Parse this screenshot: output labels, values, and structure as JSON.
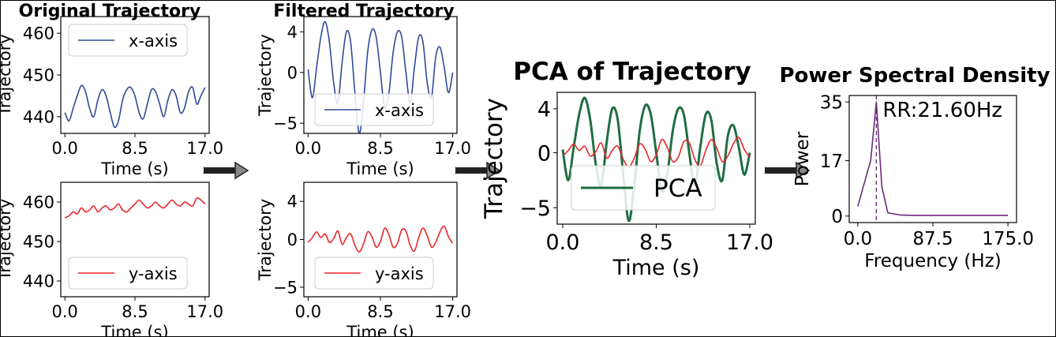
{
  "figure": {
    "arrow_color": "#222222",
    "panel_colors": {
      "x": "#2f4a96",
      "y": "#e8262a",
      "pca": "#1f6e43",
      "psd": "#6b2a7a"
    }
  },
  "chart_data": [
    {
      "id": "orig-x",
      "type": "line",
      "title": "Original Trajectory",
      "xlabel": "Time (s)",
      "ylabel": "Trajectory",
      "xlim": [
        -0.5,
        17.5
      ],
      "ylim": [
        436,
        464
      ],
      "xticks": [
        0.0,
        8.5,
        17.0
      ],
      "xtick_labels": [
        "0.0",
        "8.5",
        "17.0"
      ],
      "yticks": [
        440,
        450,
        460
      ],
      "ytick_labels": [
        "440",
        "450",
        "460"
      ],
      "legend": "top-left",
      "series": [
        {
          "name": "x-axis",
          "color": "#2f4a96",
          "x": [
            0,
            0.5,
            1,
            1.5,
            2,
            2.5,
            3,
            3.5,
            4,
            4.5,
            5,
            5.5,
            6,
            6.5,
            7,
            7.5,
            8,
            8.5,
            9,
            9.5,
            10,
            10.5,
            11,
            11.5,
            12,
            12.5,
            13,
            13.5,
            14,
            14.5,
            15,
            15.5,
            16,
            16.5,
            17
          ],
          "y": [
            441,
            439,
            442,
            445,
            447.5,
            446,
            442,
            440,
            444,
            446.5,
            445,
            441,
            437.5,
            439,
            444,
            446.5,
            447,
            445,
            441,
            439.5,
            443,
            446.5,
            446,
            443,
            440,
            444,
            446.5,
            445,
            441,
            442,
            446,
            447,
            443,
            445,
            447
          ]
        }
      ]
    },
    {
      "id": "orig-y",
      "type": "line",
      "title": "",
      "xlabel": "Time (s)",
      "ylabel": "Trajectory",
      "xlim": [
        -0.5,
        17.5
      ],
      "ylim": [
        436,
        465
      ],
      "xticks": [
        0.0,
        8.5,
        17.0
      ],
      "xtick_labels": [
        "0.0",
        "8.5",
        "17.0"
      ],
      "yticks": [
        440,
        450,
        460
      ],
      "ytick_labels": [
        "440",
        "450",
        "460"
      ],
      "legend": "bottom-left",
      "series": [
        {
          "name": "y-axis",
          "color": "#e8262a",
          "x": [
            0,
            0.5,
            1,
            1.5,
            2,
            2.5,
            3,
            3.5,
            4,
            4.5,
            5,
            5.5,
            6,
            6.5,
            7,
            7.5,
            8,
            8.5,
            9,
            9.5,
            10,
            10.5,
            11,
            11.5,
            12,
            12.5,
            13,
            13.5,
            14,
            14.5,
            15,
            15.5,
            16,
            16.5,
            17
          ],
          "y": [
            456,
            456.5,
            457.5,
            457,
            458.5,
            457.5,
            458,
            459,
            457.5,
            458.5,
            459,
            458,
            458.5,
            459.5,
            458,
            457.5,
            458.5,
            459.5,
            460.5,
            459.5,
            458.5,
            459,
            460,
            459,
            458.5,
            459.5,
            460.5,
            459.5,
            459,
            460,
            459.5,
            459,
            461,
            460.5,
            459.5
          ]
        }
      ]
    },
    {
      "id": "filt-x",
      "type": "line",
      "title": "Filtered Trajectory",
      "xlabel": "Time (s)",
      "ylabel": "Trajectory",
      "xlim": [
        -0.5,
        17.5
      ],
      "ylim": [
        -6,
        5.5
      ],
      "xticks": [
        0.0,
        8.5,
        17.0
      ],
      "xtick_labels": [
        "0.0",
        "8.5",
        "17.0"
      ],
      "yticks": [
        -5,
        0,
        4
      ],
      "ytick_labels": [
        "−5",
        "0",
        "4"
      ],
      "legend": "bottom-center",
      "series": [
        {
          "name": "x-axis",
          "color": "#2f4a96",
          "x": [
            0,
            0.5,
            1,
            1.5,
            2,
            2.5,
            3,
            3.5,
            4,
            4.5,
            5,
            5.5,
            6,
            6.5,
            7,
            7.5,
            8,
            8.5,
            9,
            9.5,
            10,
            10.5,
            11,
            11.5,
            12,
            12.5,
            13,
            13.5,
            14,
            14.5,
            15,
            15.5,
            16,
            16.5,
            17
          ],
          "y": [
            0.3,
            -2.5,
            0.5,
            3.5,
            5,
            3,
            -1,
            -3,
            1,
            4,
            3,
            -2,
            -6,
            -3,
            2,
            4.2,
            3.5,
            0,
            -3.5,
            -2,
            2,
            4,
            3.5,
            0,
            -3,
            0.5,
            3.5,
            3,
            -1,
            -2.5,
            1.5,
            2.5,
            0.5,
            -2,
            0
          ]
        }
      ]
    },
    {
      "id": "filt-y",
      "type": "line",
      "title": "",
      "xlabel": "Time (s)",
      "ylabel": "Trajectory",
      "xlim": [
        -0.5,
        17.5
      ],
      "ylim": [
        -6,
        6
      ],
      "xticks": [
        0.0,
        8.5,
        17.0
      ],
      "xtick_labels": [
        "0.0",
        "8.5",
        "17.0"
      ],
      "yticks": [
        -5,
        0,
        4
      ],
      "ytick_labels": [
        "−5",
        "0",
        "4"
      ],
      "legend": "bottom-center",
      "series": [
        {
          "name": "y-axis",
          "color": "#e8262a",
          "x": [
            0,
            0.5,
            1,
            1.5,
            2,
            2.5,
            3,
            3.5,
            4,
            4.5,
            5,
            5.5,
            6,
            6.5,
            7,
            7.5,
            8,
            8.5,
            9,
            9.5,
            10,
            10.5,
            11,
            11.5,
            12,
            12.5,
            13,
            13.5,
            14,
            14.5,
            15,
            15.5,
            16,
            16.5,
            17
          ],
          "y": [
            -0.3,
            0.2,
            0.8,
            0.2,
            0.6,
            -0.3,
            0.1,
            0.9,
            -0.5,
            0.2,
            0.6,
            -0.6,
            -1.3,
            -0.5,
            0.8,
            0.3,
            -0.8,
            -0.2,
            1.2,
            0.5,
            -0.8,
            -0.4,
            1.0,
            0.9,
            -0.6,
            -1.2,
            0.2,
            1.2,
            0.4,
            -0.8,
            -0.3,
            0.8,
            1.4,
            0.3,
            -0.4
          ]
        }
      ]
    },
    {
      "id": "pca",
      "type": "line",
      "title": "PCA of Trajectory",
      "xlabel": "Time (s)",
      "ylabel": "Trajectory",
      "xlim": [
        -0.5,
        17.5
      ],
      "ylim": [
        -6.5,
        5.5
      ],
      "xticks": [
        0.0,
        8.5,
        17.0
      ],
      "xtick_labels": [
        "0.0",
        "8.5",
        "17.0"
      ],
      "yticks": [
        -5,
        0,
        4
      ],
      "ytick_labels": [
        "−5",
        "0",
        "4"
      ],
      "legend": "bottom-center",
      "series": [
        {
          "name": "PCA",
          "color": "#1f6e43",
          "x": [
            0,
            0.5,
            1,
            1.5,
            2,
            2.5,
            3,
            3.5,
            4,
            4.5,
            5,
            5.5,
            6,
            6.5,
            7,
            7.5,
            8,
            8.5,
            9,
            9.5,
            10,
            10.5,
            11,
            11.5,
            12,
            12.5,
            13,
            13.5,
            14,
            14.5,
            15,
            15.5,
            16,
            16.5,
            17
          ],
          "y": [
            0.3,
            -2.5,
            0.5,
            3.5,
            5,
            3,
            -1,
            -3,
            1,
            4,
            3,
            -2,
            -6.2,
            -3,
            2,
            4.3,
            3.5,
            0,
            -3.5,
            -2,
            2,
            4,
            3.5,
            0,
            -3,
            0.5,
            3.5,
            3,
            -1,
            -2.5,
            1.5,
            2.5,
            0.5,
            -2,
            0
          ]
        },
        {
          "color": "#e8262a",
          "x": [
            0,
            0.5,
            1,
            1.5,
            2,
            2.5,
            3,
            3.5,
            4,
            4.5,
            5,
            5.5,
            6,
            6.5,
            7,
            7.5,
            8,
            8.5,
            9,
            9.5,
            10,
            10.5,
            11,
            11.5,
            12,
            12.5,
            13,
            13.5,
            14,
            14.5,
            15,
            15.5,
            16,
            16.5,
            17
          ],
          "y": [
            -0.3,
            0.2,
            0.8,
            0.2,
            0.6,
            -0.3,
            0.1,
            0.9,
            -0.5,
            0.2,
            0.6,
            -0.6,
            -1.3,
            -0.5,
            0.8,
            0.3,
            -0.8,
            -0.2,
            1.2,
            0.5,
            -0.8,
            -0.4,
            1.0,
            0.9,
            -0.6,
            -1.2,
            0.2,
            1.2,
            0.4,
            -0.8,
            -0.3,
            0.8,
            1.4,
            0.3,
            -0.4
          ]
        }
      ]
    },
    {
      "id": "psd",
      "type": "line",
      "title": "Power Spectral Density",
      "xlabel": "Frequency (Hz)",
      "ylabel": "Power",
      "xlim": [
        -10,
        185
      ],
      "ylim": [
        -2,
        37
      ],
      "xticks": [
        0.0,
        87.5,
        175.0
      ],
      "xtick_labels": [
        "0.0",
        "87.5",
        "175.0"
      ],
      "yticks": [
        0,
        17,
        35
      ],
      "ytick_labels": [
        "0",
        "17",
        "35"
      ],
      "annotation": {
        "text": "RR:21.60Hz",
        "x": 21.6
      },
      "series": [
        {
          "color": "#6b2a7a",
          "x": [
            0,
            15,
            21.6,
            28,
            35,
            50,
            70,
            100,
            130,
            175
          ],
          "y": [
            3,
            17,
            35,
            9,
            1,
            0.3,
            0.2,
            0.2,
            0.2,
            0.2
          ]
        }
      ]
    }
  ]
}
